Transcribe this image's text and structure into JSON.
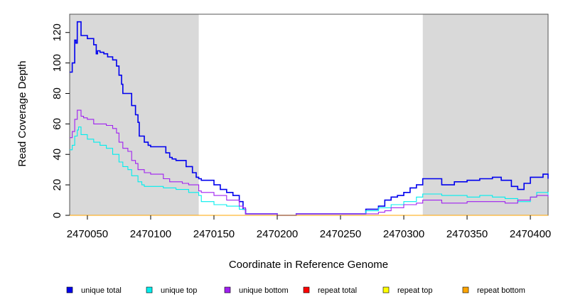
{
  "chart_data": {
    "type": "line",
    "xlabel": "Coordinate in Reference Genome",
    "ylabel": "Read Coverage Depth",
    "xlim": [
      2470036,
      2470414
    ],
    "ylim": [
      0,
      132
    ],
    "x_ticks": [
      2470050,
      2470100,
      2470150,
      2470200,
      2470250,
      2470300,
      2470350,
      2470400
    ],
    "x_tick_labels": [
      "2470050",
      "2470100",
      "2470150",
      "2470200",
      "2470250",
      "2470300",
      "2470350",
      "2470400"
    ],
    "y_ticks": [
      0,
      20,
      40,
      60,
      80,
      100,
      120
    ],
    "y_tick_labels": [
      "0",
      "20",
      "40",
      "60",
      "80",
      "100",
      "120"
    ],
    "shaded_regions": [
      [
        2470036,
        2470138
      ],
      [
        2470315,
        2470414
      ]
    ],
    "shade_color": "#d9d9d9",
    "legend_position": "bottom",
    "series": [
      {
        "name": "unique total",
        "color": "#0000ee",
        "x": [
          2470036,
          2470038,
          2470040,
          2470041,
          2470042,
          2470043,
          2470045,
          2470047,
          2470050,
          2470055,
          2470057,
          2470058,
          2470060,
          2470063,
          2470066,
          2470070,
          2470073,
          2470075,
          2470077,
          2470078,
          2470080,
          2470085,
          2470088,
          2470090,
          2470091,
          2470093,
          2470095,
          2470098,
          2470100,
          2470105,
          2470112,
          2470115,
          2470117,
          2470120,
          2470128,
          2470133,
          2470136,
          2470138,
          2470140,
          2470150,
          2470155,
          2470160,
          2470165,
          2470170,
          2470173,
          2470175,
          2470177,
          2470195,
          2470200,
          2470205,
          2470215,
          2470270,
          2470280,
          2470285,
          2470290,
          2470295,
          2470300,
          2470305,
          2470310,
          2470315,
          2470320,
          2470330,
          2470340,
          2470350,
          2470360,
          2470370,
          2470377,
          2470385,
          2470390,
          2470395,
          2470400,
          2470410,
          2470414
        ],
        "y": [
          94,
          100,
          115,
          113,
          127,
          127,
          118,
          118,
          116,
          112,
          106,
          108,
          107,
          106,
          104,
          102,
          98,
          92,
          86,
          80,
          80,
          72,
          66,
          61,
          52,
          52,
          48,
          46,
          45,
          45,
          41,
          38,
          37,
          36,
          32,
          28,
          25,
          24,
          23,
          20,
          17,
          15,
          13,
          9,
          4,
          1,
          1,
          1,
          0,
          0,
          1,
          4,
          6,
          10,
          12,
          13,
          15,
          18,
          20,
          24,
          24,
          20,
          22,
          23,
          24,
          25,
          23,
          19,
          17,
          21,
          25,
          27,
          24
        ]
      },
      {
        "name": "unique top",
        "color": "#00eeee",
        "x": [
          2470036,
          2470038,
          2470040,
          2470042,
          2470043,
          2470045,
          2470047,
          2470050,
          2470055,
          2470060,
          2470065,
          2470070,
          2470075,
          2470078,
          2470082,
          2470085,
          2470090,
          2470093,
          2470095,
          2470100,
          2470110,
          2470120,
          2470130,
          2470138,
          2470140,
          2470150,
          2470160,
          2470170,
          2470175,
          2470177,
          2470195,
          2470200,
          2470205,
          2470215,
          2470270,
          2470280,
          2470290,
          2470300,
          2470310,
          2470315,
          2470320,
          2470330,
          2470350,
          2470360,
          2470370,
          2470380,
          2470390,
          2470400,
          2470405,
          2470414
        ],
        "y": [
          43,
          46,
          52,
          56,
          58,
          53,
          53,
          50,
          48,
          46,
          44,
          40,
          35,
          32,
          30,
          26,
          22,
          20,
          19,
          19,
          18,
          17,
          15,
          13,
          9,
          7,
          6,
          4,
          1,
          1,
          1,
          0,
          0,
          1,
          3,
          5,
          7,
          9,
          12,
          14,
          14,
          13,
          12,
          13,
          12,
          11,
          9,
          12,
          15,
          13
        ]
      },
      {
        "name": "unique bottom",
        "color": "#a020f0",
        "x": [
          2470036,
          2470038,
          2470040,
          2470042,
          2470043,
          2470045,
          2470047,
          2470050,
          2470055,
          2470060,
          2470065,
          2470070,
          2470073,
          2470075,
          2470078,
          2470082,
          2470085,
          2470088,
          2470090,
          2470095,
          2470100,
          2470110,
          2470115,
          2470125,
          2470130,
          2470138,
          2470140,
          2470150,
          2470160,
          2470170,
          2470173,
          2470175,
          2470177,
          2470195,
          2470200,
          2470205,
          2470215,
          2470270,
          2470280,
          2470285,
          2470290,
          2470300,
          2470310,
          2470315,
          2470320,
          2470330,
          2470350,
          2470370,
          2470380,
          2470390,
          2470400,
          2470405,
          2470414
        ],
        "y": [
          51,
          55,
          63,
          69,
          69,
          65,
          64,
          63,
          60,
          60,
          59,
          57,
          54,
          48,
          44,
          42,
          36,
          34,
          30,
          28,
          27,
          24,
          22,
          21,
          20,
          16,
          15,
          13,
          10,
          6,
          5,
          1,
          1,
          1,
          0,
          0,
          1,
          1,
          2,
          3,
          5,
          7,
          8,
          10,
          10,
          8,
          9,
          9,
          8,
          10,
          12,
          13,
          12
        ]
      },
      {
        "name": "repeat total",
        "color": "#ff0000",
        "x": [
          2470036,
          2470414
        ],
        "y": [
          0,
          0
        ]
      },
      {
        "name": "repeat top",
        "color": "#ffff00",
        "x": [
          2470036,
          2470414
        ],
        "y": [
          0,
          0
        ]
      },
      {
        "name": "repeat bottom",
        "color": "#ffa500",
        "x": [
          2470036,
          2470414
        ],
        "y": [
          0,
          0
        ]
      }
    ]
  }
}
